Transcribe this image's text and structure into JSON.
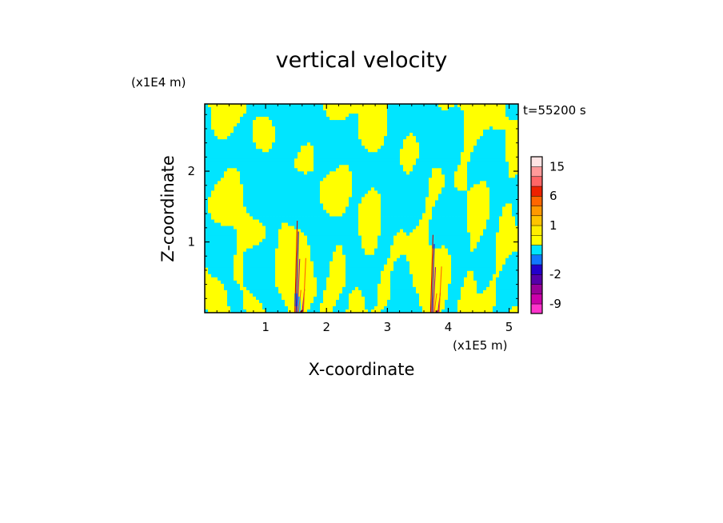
{
  "chart_data": {
    "type": "heatmap",
    "title": "vertical velocity",
    "xlabel": "X-coordinate",
    "ylabel": "Z-coordinate",
    "x_unit": "(x1E5 m)",
    "y_unit": "(x1E4 m)",
    "time_label": "t=55200 s",
    "xlim": [
      0,
      5.15
    ],
    "ylim": [
      0,
      2.95
    ],
    "x_ticks": [
      "1",
      "2",
      "3",
      "4",
      "5"
    ],
    "y_ticks": [
      "1",
      "2"
    ],
    "colorbar": {
      "levels": [
        -12,
        -9,
        -6,
        -4,
        -2,
        -1,
        -0.5,
        0,
        0.5,
        1,
        2,
        4,
        6,
        9,
        12,
        15,
        20
      ],
      "colors": [
        "#ff33cc",
        "#cc00aa",
        "#990099",
        "#5500aa",
        "#2200cc",
        "#1177ff",
        "#00e5ff",
        "#ffff00",
        "#ffee00",
        "#ffc400",
        "#ff9900",
        "#ff6600",
        "#ee2200",
        "#ff6666",
        "#ff9a9a",
        "#ffe4e4"
      ],
      "tick_labels": [
        "15",
        "6",
        "1",
        "-2",
        "-9"
      ],
      "tick_values": [
        15,
        6,
        1,
        -2,
        -9
      ]
    },
    "dominant_colors": {
      "positive": "#ffff00",
      "negative": "#00e5ff"
    },
    "features": [
      {
        "x": 1.55,
        "description": "narrow updraft/downdraft core",
        "z_top": 1.3
      },
      {
        "x": 3.78,
        "description": "narrow updraft/downdraft core",
        "z_top": 1.1
      }
    ]
  }
}
